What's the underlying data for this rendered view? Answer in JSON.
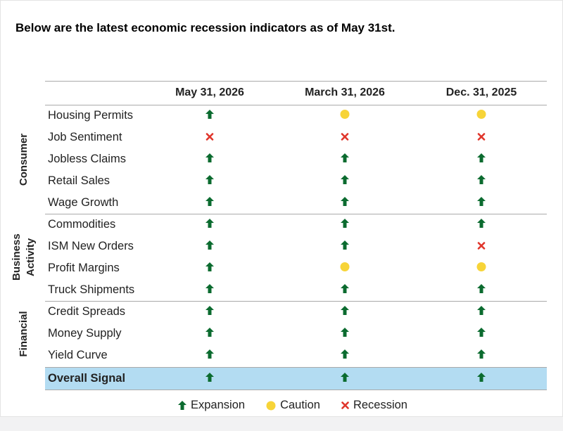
{
  "title": "Below are the latest economic recession indicators as of May 31st.",
  "table": {
    "columns": [
      "May 31, 2026",
      "March 31, 2026",
      "Dec. 31, 2025"
    ],
    "groups": [
      {
        "name": "Consumer",
        "rows": [
          {
            "label": "Housing Permits",
            "signals": [
              "Expansion",
              "Caution",
              "Caution"
            ]
          },
          {
            "label": "Job Sentiment",
            "signals": [
              "Recession",
              "Recession",
              "Recession"
            ]
          },
          {
            "label": "Jobless Claims",
            "signals": [
              "Expansion",
              "Expansion",
              "Expansion"
            ]
          },
          {
            "label": "Retail Sales",
            "signals": [
              "Expansion",
              "Expansion",
              "Expansion"
            ]
          },
          {
            "label": "Wage Growth",
            "signals": [
              "Expansion",
              "Expansion",
              "Expansion"
            ]
          }
        ]
      },
      {
        "name": "Business Activity",
        "rows": [
          {
            "label": "Commodities",
            "signals": [
              "Expansion",
              "Expansion",
              "Expansion"
            ]
          },
          {
            "label": "ISM New Orders",
            "signals": [
              "Expansion",
              "Expansion",
              "Recession"
            ]
          },
          {
            "label": "Profit Margins",
            "signals": [
              "Expansion",
              "Caution",
              "Caution"
            ]
          },
          {
            "label": "Truck Shipments",
            "signals": [
              "Expansion",
              "Expansion",
              "Expansion"
            ]
          }
        ]
      },
      {
        "name": "Financial",
        "rows": [
          {
            "label": "Credit Spreads",
            "signals": [
              "Expansion",
              "Expansion",
              "Expansion"
            ]
          },
          {
            "label": "Money Supply",
            "signals": [
              "Expansion",
              "Expansion",
              "Expansion"
            ]
          },
          {
            "label": "Yield Curve",
            "signals": [
              "Expansion",
              "Expansion",
              "Expansion"
            ]
          }
        ]
      }
    ],
    "overall": {
      "label": "Overall Signal",
      "signals": [
        "Expansion",
        "Expansion",
        "Expansion"
      ]
    }
  },
  "legend": [
    "Expansion",
    "Caution",
    "Recession"
  ]
}
